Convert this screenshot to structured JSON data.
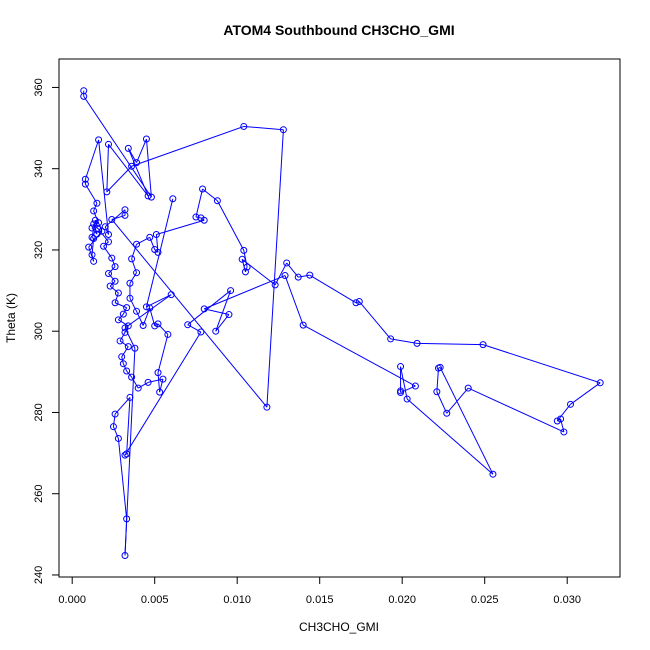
{
  "chart_data": {
    "type": "line",
    "title": "ATOM4 Southbound CH3CHO_GMI",
    "xlabel": "CH3CHO_GMI",
    "ylabel": "Theta (K)",
    "xlim": [
      -0.0008,
      0.0332
    ],
    "ylim": [
      239.5,
      367
    ],
    "xticks": [
      0.0,
      0.005,
      0.01,
      0.015,
      0.02,
      0.025,
      0.03
    ],
    "xtick_labels": [
      "0.000",
      "0.005",
      "0.010",
      "0.015",
      "0.020",
      "0.025",
      "0.030"
    ],
    "yticks": [
      240,
      260,
      280,
      300,
      320,
      340,
      360
    ],
    "ytick_labels": [
      "240",
      "260",
      "280",
      "300",
      "320",
      "340",
      "360"
    ],
    "grid": false,
    "series": [
      {
        "color": "#0000ff",
        "marker": "open-circle",
        "line": true,
        "points": [
          [
            0.0007,
            359.2
          ],
          [
            0.0007,
            357.8
          ],
          [
            0.0048,
            333.0
          ],
          [
            0.0045,
            347.3
          ],
          [
            0.0039,
            341.5
          ],
          [
            0.0034,
            345.0
          ],
          [
            0.0046,
            333.3
          ],
          [
            0.0022,
            346.0
          ],
          [
            0.0021,
            334.3
          ],
          [
            0.0036,
            340.6
          ],
          [
            0.0104,
            350.4
          ],
          [
            0.0128,
            349.6
          ],
          [
            0.0118,
            281.3
          ],
          [
            0.0024,
            327.5
          ],
          [
            0.0032,
            328.5
          ],
          [
            0.0032,
            329.9
          ],
          [
            0.002,
            325.7
          ],
          [
            0.0022,
            323.8
          ],
          [
            0.0016,
            347.1
          ],
          [
            0.0008,
            337.4
          ],
          [
            0.0008,
            336.2
          ],
          [
            0.0015,
            331.5
          ],
          [
            0.0013,
            329.6
          ],
          [
            0.0018,
            324.6
          ],
          [
            0.001,
            320.7
          ],
          [
            0.0013,
            317.2
          ],
          [
            0.0012,
            318.8
          ],
          [
            0.0013,
            322.8
          ],
          [
            0.0012,
            323.1
          ],
          [
            0.0014,
            327.3
          ],
          [
            0.0016,
            326.7
          ],
          [
            0.0012,
            325.4
          ],
          [
            0.0015,
            323.9
          ],
          [
            0.0013,
            326.4
          ],
          [
            0.0016,
            325.1
          ],
          [
            0.0022,
            322.0
          ],
          [
            0.0019,
            320.9
          ],
          [
            0.0024,
            318.0
          ],
          [
            0.0026,
            315.9
          ],
          [
            0.0022,
            314.2
          ],
          [
            0.0026,
            312.3
          ],
          [
            0.0023,
            311.1
          ],
          [
            0.0028,
            309.4
          ],
          [
            0.0026,
            307.0
          ],
          [
            0.0033,
            305.8
          ],
          [
            0.0031,
            304.2
          ],
          [
            0.0028,
            302.8
          ],
          [
            0.0034,
            301.3
          ],
          [
            0.0032,
            299.7
          ],
          [
            0.0029,
            297.6
          ],
          [
            0.0034,
            296.2
          ],
          [
            0.003,
            293.7
          ],
          [
            0.0031,
            292.0
          ],
          [
            0.0033,
            290.2
          ],
          [
            0.0036,
            288.7
          ],
          [
            0.004,
            286.0
          ],
          [
            0.0046,
            287.4
          ],
          [
            0.0055,
            288.2
          ],
          [
            0.0053,
            285.0
          ],
          [
            0.0052,
            289.8
          ],
          [
            0.0058,
            299.2
          ],
          [
            0.0052,
            301.8
          ],
          [
            0.005,
            301.3
          ],
          [
            0.0047,
            305.7
          ],
          [
            0.0043,
            301.4
          ],
          [
            0.0039,
            304.9
          ],
          [
            0.0035,
            308.1
          ],
          [
            0.0035,
            311.8
          ],
          [
            0.0039,
            314.4
          ],
          [
            0.0036,
            317.8
          ],
          [
            0.0039,
            321.4
          ],
          [
            0.0047,
            323.1
          ],
          [
            0.005,
            320.1
          ],
          [
            0.0052,
            319.4
          ],
          [
            0.0051,
            323.8
          ],
          [
            0.008,
            327.3
          ],
          [
            0.0078,
            327.9
          ],
          [
            0.0075,
            328.1
          ],
          [
            0.0079,
            335.0
          ],
          [
            0.0088,
            332.1
          ],
          [
            0.0104,
            319.9
          ],
          [
            0.0106,
            315.8
          ],
          [
            0.0105,
            314.6
          ],
          [
            0.0103,
            317.7
          ],
          [
            0.0123,
            311.4
          ],
          [
            0.013,
            316.8
          ],
          [
            0.0137,
            313.3
          ],
          [
            0.0144,
            313.8
          ],
          [
            0.0172,
            307.0
          ],
          [
            0.0174,
            307.3
          ],
          [
            0.0193,
            298.1
          ],
          [
            0.0209,
            297.0
          ],
          [
            0.0249,
            296.7
          ],
          [
            0.032,
            287.3
          ],
          [
            0.0302,
            282.0
          ],
          [
            0.0294,
            277.9
          ],
          [
            0.0296,
            278.4
          ],
          [
            0.0298,
            275.2
          ],
          [
            0.024,
            286.0
          ],
          [
            0.0227,
            279.8
          ],
          [
            0.0221,
            285.1
          ],
          [
            0.0222,
            290.9
          ],
          [
            0.0223,
            291.1
          ],
          [
            0.0255,
            264.8
          ],
          [
            0.0203,
            283.3
          ],
          [
            0.0199,
            291.3
          ],
          [
            0.0199,
            285.3
          ],
          [
            0.0199,
            284.9
          ],
          [
            0.0208,
            286.5
          ],
          [
            0.014,
            301.5
          ],
          [
            0.0129,
            313.7
          ],
          [
            0.008,
            305.5
          ],
          [
            0.0095,
            304.1
          ],
          [
            0.0087,
            300.0
          ],
          [
            0.0096,
            310.0
          ],
          [
            0.007,
            301.6
          ],
          [
            0.0078,
            299.8
          ],
          [
            0.0032,
            269.5
          ],
          [
            0.0033,
            269.8
          ],
          [
            0.0035,
            283.7
          ],
          [
            0.0026,
            279.6
          ],
          [
            0.0025,
            276.5
          ],
          [
            0.0028,
            273.6
          ],
          [
            0.0033,
            253.8
          ],
          [
            0.0032,
            244.8
          ],
          [
            0.0038,
            295.8
          ],
          [
            0.0032,
            300.8
          ],
          [
            0.006,
            309.0
          ],
          [
            0.0045,
            306.0
          ],
          [
            0.0061,
            332.6
          ]
        ]
      }
    ]
  }
}
